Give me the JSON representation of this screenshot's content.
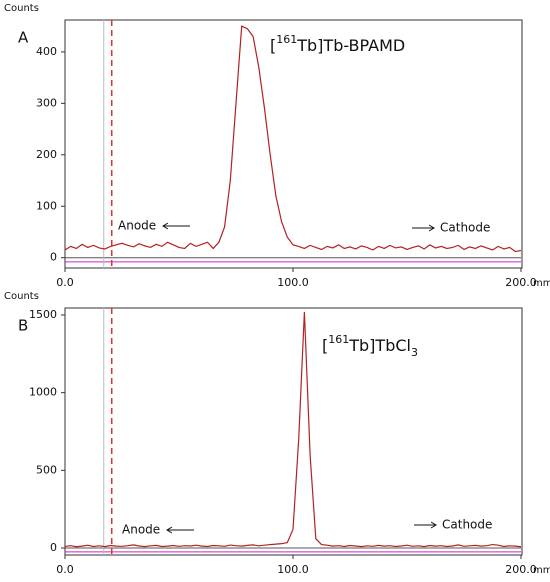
{
  "chart_data": [
    {
      "type": "line",
      "panel_label": "A",
      "ylabel": "Counts",
      "xlabel": "mm",
      "annotation": [
        "[",
        "161",
        "Tb]Tb-BPAMD"
      ],
      "anode": "Anode",
      "cathode": "Cathode",
      "x": [
        0,
        2.5,
        5,
        7.5,
        10,
        12.5,
        15,
        17.5,
        20,
        22.5,
        25,
        27.5,
        30,
        32.5,
        35,
        37.5,
        40,
        42.5,
        45,
        47.5,
        50,
        52.5,
        55,
        57.5,
        60,
        62.5,
        65,
        67.5,
        70,
        72.5,
        75,
        77.5,
        80,
        82.5,
        85,
        87.5,
        90,
        92.5,
        95,
        97.5,
        100,
        102.5,
        105,
        107.5,
        110,
        112.5,
        115,
        117.5,
        120,
        122.5,
        125,
        127.5,
        130,
        132.5,
        135,
        137.5,
        140,
        142.5,
        145,
        147.5,
        150,
        152.5,
        155,
        157.5,
        160,
        162.5,
        165,
        167.5,
        170,
        172.5,
        175,
        177.5,
        180,
        182.5,
        185,
        187.5,
        190,
        192.5,
        195,
        197.5,
        200
      ],
      "series": [
        {
          "color": "#b22222",
          "values": [
            15,
            22,
            18,
            26,
            20,
            24,
            19,
            17,
            22,
            25,
            28,
            24,
            21,
            27,
            23,
            20,
            26,
            22,
            30,
            25,
            20,
            18,
            28,
            22,
            26,
            30,
            18,
            30,
            60,
            150,
            300,
            450,
            445,
            430,
            370,
            290,
            200,
            120,
            70,
            40,
            25,
            22,
            18,
            24,
            20,
            16,
            22,
            19,
            25,
            18,
            21,
            17,
            23,
            20,
            15,
            22,
            18,
            24,
            19,
            21,
            16,
            20,
            23,
            17,
            25,
            19,
            22,
            18,
            20,
            24,
            16,
            21,
            18,
            23,
            19,
            15,
            22,
            17,
            20,
            12,
            14
          ]
        }
      ],
      "xlim": [
        0,
        200
      ],
      "ylim": [
        -20,
        462
      ],
      "xticks": [
        {
          "value": 0,
          "label": "0.0"
        },
        {
          "value": 100,
          "label": "100.0"
        },
        {
          "value": 200,
          "label": "200.0"
        }
      ],
      "yticks": [
        0,
        100,
        200,
        300,
        400
      ],
      "vlines": [
        {
          "x": 17,
          "color": "#bbbbbb",
          "dash": false
        },
        {
          "x": 20.5,
          "color": "#e03030",
          "dash": true
        }
      ],
      "hlines": [
        {
          "y": 0,
          "color": "#555555"
        },
        {
          "y": -8,
          "color": "#d020d0"
        }
      ]
    },
    {
      "type": "line",
      "panel_label": "B",
      "ylabel": "Counts",
      "xlabel": "mm",
      "annotation": [
        "[",
        "161",
        "Tb]TbCl",
        "3"
      ],
      "anode": "Anode",
      "cathode": "Cathode",
      "x": [
        0,
        2.5,
        5,
        7.5,
        10,
        12.5,
        15,
        17.5,
        20,
        22.5,
        25,
        27.5,
        30,
        32.5,
        35,
        37.5,
        40,
        42.5,
        45,
        47.5,
        50,
        52.5,
        55,
        57.5,
        60,
        62.5,
        65,
        67.5,
        70,
        72.5,
        75,
        77.5,
        80,
        82.5,
        85,
        87.5,
        90,
        92.5,
        95,
        97.5,
        100,
        102.5,
        105,
        107.5,
        110,
        112.5,
        115,
        117.5,
        120,
        122.5,
        125,
        127.5,
        130,
        132.5,
        135,
        137.5,
        140,
        142.5,
        145,
        147.5,
        150,
        152.5,
        155,
        157.5,
        160,
        162.5,
        165,
        167.5,
        170,
        172.5,
        175,
        177.5,
        180,
        182.5,
        185,
        187.5,
        190,
        192.5,
        195,
        197.5,
        200
      ],
      "series": [
        {
          "color": "#b22222",
          "values": [
            10,
            15,
            8,
            12,
            18,
            10,
            14,
            9,
            16,
            12,
            11,
            15,
            20,
            13,
            9,
            14,
            17,
            10,
            12,
            16,
            11,
            15,
            13,
            18,
            12,
            10,
            16,
            14,
            11,
            19,
            15,
            12,
            17,
            20,
            14,
            18,
            22,
            25,
            28,
            35,
            120,
            700,
            1520,
            600,
            60,
            22,
            18,
            12,
            15,
            10,
            16,
            13,
            9,
            14,
            11,
            17,
            12,
            15,
            10,
            13,
            18,
            11,
            14,
            9,
            16,
            12,
            15,
            10,
            13,
            20,
            11,
            14,
            17,
            12,
            15,
            22,
            18,
            10,
            14,
            12,
            8
          ]
        }
      ],
      "xlim": [
        0,
        200
      ],
      "ylim": [
        -45,
        1545
      ],
      "xticks": [
        {
          "value": 0,
          "label": "0.0"
        },
        {
          "value": 100,
          "label": "100.0"
        },
        {
          "value": 200,
          "label": "200.0"
        }
      ],
      "yticks": [
        0,
        500,
        1000,
        1500
      ],
      "vlines": [
        {
          "x": 17,
          "color": "#bbbbbb",
          "dash": false
        },
        {
          "x": 20.5,
          "color": "#e03030",
          "dash": true
        }
      ],
      "hlines": [
        {
          "y": 0,
          "color": "#555555"
        },
        {
          "y": -25,
          "color": "#d020d0"
        }
      ]
    }
  ]
}
